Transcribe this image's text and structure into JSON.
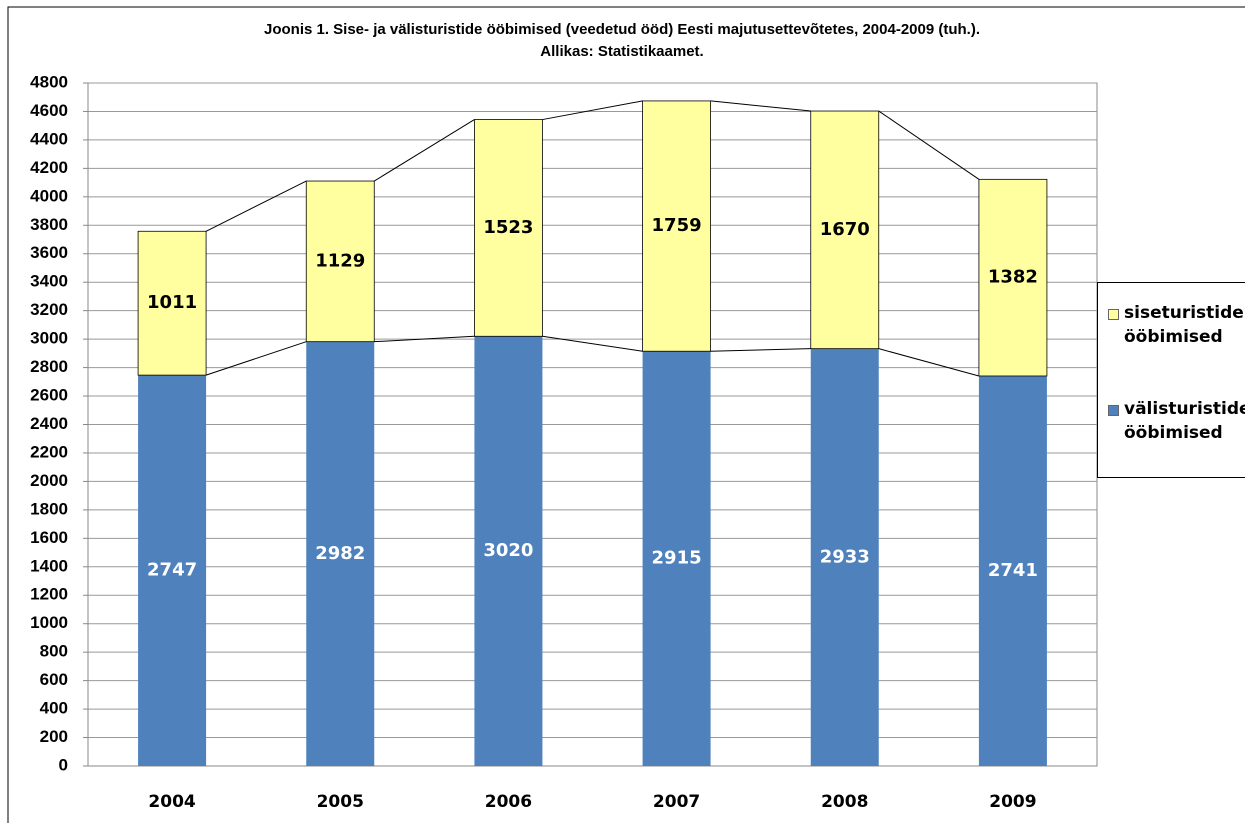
{
  "chart_data": {
    "type": "stacked_bar",
    "title": "Joonis 1. Sise- ja välisturistide ööbimised (veedetud ööd) Eesti majutusettevõtetes, 2004-2009 (tuh.).",
    "subtitle": "Allikas: Statistikaamet.",
    "categories": [
      "2004",
      "2005",
      "2006",
      "2007",
      "2008",
      "2009"
    ],
    "series": [
      {
        "name": "välisturistide ööbimised",
        "color": "#4f81bd",
        "label_color": "#ffffff",
        "values": [
          2747,
          2982,
          3020,
          2915,
          2933,
          2741
        ]
      },
      {
        "name": "siseturistide ööbimised",
        "color": "#ffffa0",
        "label_color": "#000000",
        "values": [
          1011,
          1129,
          1523,
          1759,
          1670,
          1382
        ]
      }
    ],
    "ylim": [
      0,
      4800
    ],
    "yticks": [
      0,
      200,
      400,
      600,
      800,
      1000,
      1200,
      1400,
      1600,
      1800,
      2000,
      2200,
      2400,
      2600,
      2800,
      3000,
      3200,
      3400,
      3600,
      3800,
      4000,
      4200,
      4400,
      4600,
      4800
    ],
    "grid": true,
    "series_lines": true,
    "legend": "right"
  }
}
